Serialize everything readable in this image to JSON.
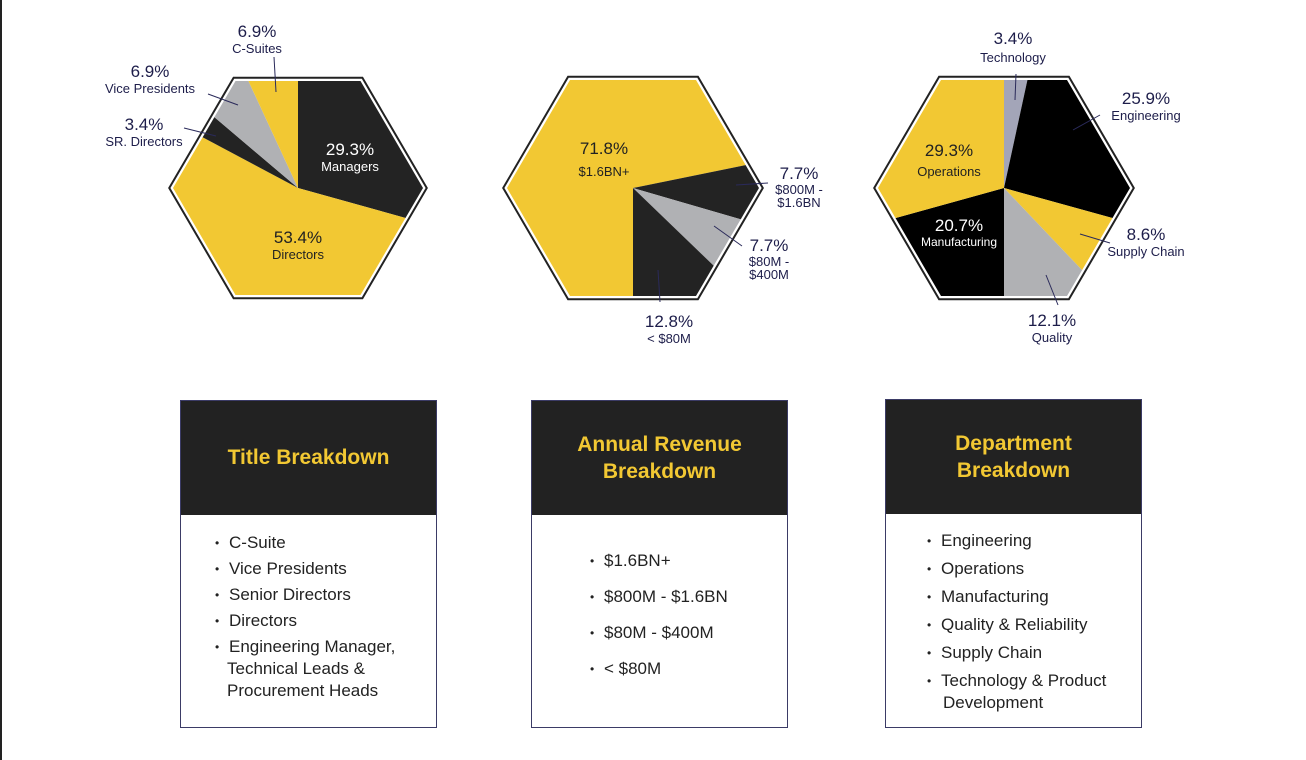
{
  "colors": {
    "yellow": "#f2c833",
    "dark": "#232323",
    "black": "#000000",
    "gray": "#b0b1b4",
    "bluegray": "#a3a5b8",
    "navy": "#1d1d4a"
  },
  "chart_data": [
    {
      "type": "pie",
      "title": "Title Breakdown",
      "start": "12 o'clock clockwise",
      "slices": [
        {
          "label": "Managers",
          "value": 29.3,
          "pct": "29.3%",
          "color": "dark"
        },
        {
          "label": "Directors",
          "value": 53.4,
          "pct": "53.4%",
          "color": "yellow"
        },
        {
          "label": "SR. Directors",
          "value": 3.4,
          "pct": "3.4%",
          "color": "dark"
        },
        {
          "label": "Vice Presidents",
          "value": 6.9,
          "pct": "6.9%",
          "color": "gray"
        },
        {
          "label": "C-Suites",
          "value": 6.9,
          "pct": "6.9%",
          "color": "yellow"
        }
      ]
    },
    {
      "type": "pie",
      "title": "Annual Revenue Breakdown",
      "start": "6 o'clock clockwise",
      "slices": [
        {
          "label": "$1.6BN+",
          "value": 71.8,
          "pct": "71.8%",
          "color": "yellow"
        },
        {
          "label": "$800M - $1.6BN",
          "value": 7.7,
          "pct": "7.7%",
          "color": "dark",
          "l1": "$800M -",
          "l2": "$1.6BN"
        },
        {
          "label": "$80M - $400M",
          "value": 7.7,
          "pct": "7.7%",
          "color": "gray",
          "l1": "$80M -",
          "l2": "$400M"
        },
        {
          "label": "< $80M",
          "value": 12.8,
          "pct": "12.8%",
          "color": "dark"
        }
      ]
    },
    {
      "type": "pie",
      "title": "Department Breakdown",
      "start": "12 o'clock clockwise",
      "slices": [
        {
          "label": "Technology",
          "value": 3.4,
          "pct": "3.4%",
          "color": "bluegray"
        },
        {
          "label": "Engineering",
          "value": 25.9,
          "pct": "25.9%",
          "color": "black"
        },
        {
          "label": "Supply Chain",
          "value": 8.6,
          "pct": "8.6%",
          "color": "yellow"
        },
        {
          "label": "Quality",
          "value": 12.1,
          "pct": "12.1%",
          "color": "gray"
        },
        {
          "label": "Manufacturing",
          "value": 20.7,
          "pct": "20.7%",
          "color": "black"
        },
        {
          "label": "Operations",
          "value": 29.3,
          "pct": "29.3%",
          "color": "yellow"
        }
      ]
    }
  ],
  "boxes": [
    {
      "title": "Title Breakdown",
      "items": [
        "C-Suite",
        "Vice Presidents",
        "Senior Directors",
        "Directors",
        "Engineering Manager,",
        "Technical Leads &",
        "Procurement Heads"
      ]
    },
    {
      "title": "Annual Revenue Breakdown",
      "items": [
        "$1.6BN+",
        "$800M - $1.6BN",
        "$80M - $400M",
        "< $80M"
      ]
    },
    {
      "title": "Department Breakdown",
      "items": [
        "Engineering",
        "Operations",
        "Manufacturing",
        "Quality & Reliability",
        "Supply Chain",
        "Technology & Product",
        "Development"
      ]
    }
  ]
}
